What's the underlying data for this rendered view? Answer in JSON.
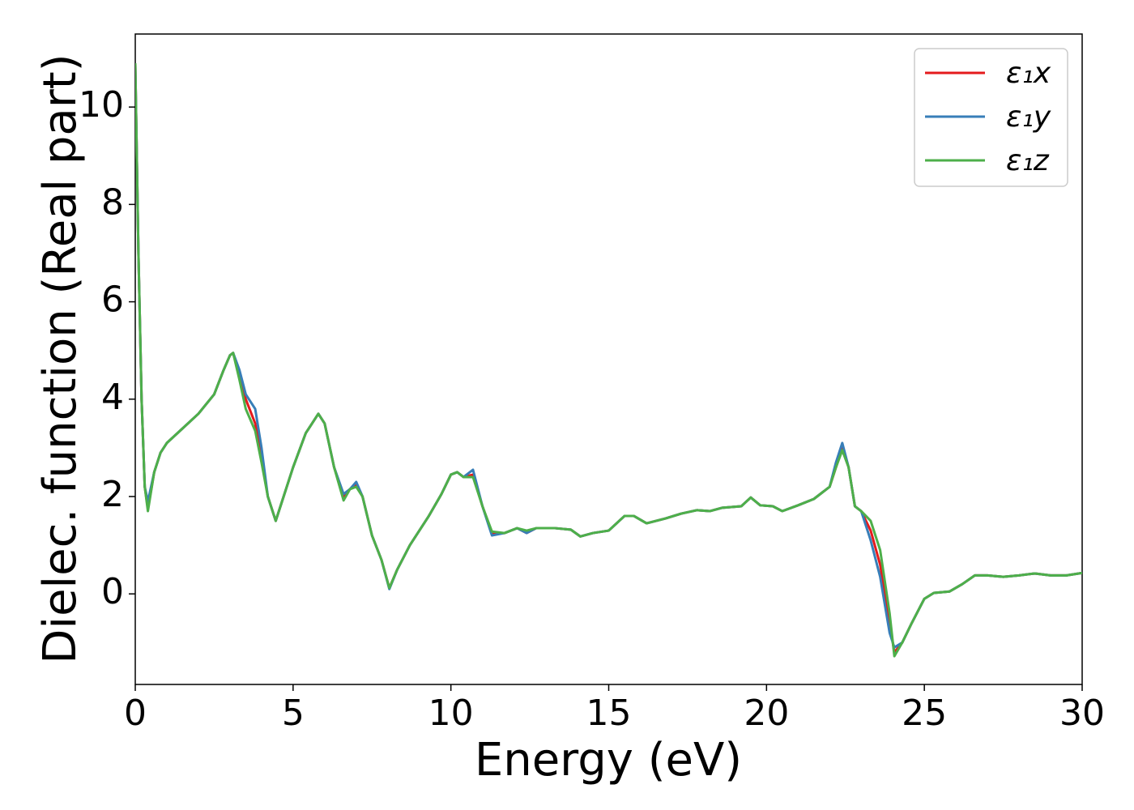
{
  "chart_data": {
    "type": "line",
    "xlabel": "Energy (eV)",
    "ylabel": "Dielec. function (Real part)",
    "xlim": [
      0,
      30
    ],
    "ylim": [
      -1.86,
      11.5
    ],
    "xticks": [
      0,
      5,
      10,
      15,
      20,
      25,
      30
    ],
    "yticks": [
      0,
      2,
      4,
      6,
      8,
      10
    ],
    "legend": "upper right",
    "x": [
      0,
      0.1,
      0.2,
      0.3,
      0.4,
      0.6,
      0.8,
      1.0,
      1.5,
      2.0,
      2.5,
      2.8,
      3.0,
      3.1,
      3.3,
      3.5,
      3.8,
      4.0,
      4.2,
      4.45,
      4.7,
      5.0,
      5.4,
      5.8,
      6.0,
      6.3,
      6.6,
      6.8,
      7.0,
      7.2,
      7.5,
      7.8,
      8.05,
      8.3,
      8.7,
      9.3,
      9.7,
      10.0,
      10.2,
      10.4,
      10.7,
      11.0,
      11.3,
      11.7,
      12.1,
      12.4,
      12.7,
      13.3,
      13.8,
      14.1,
      14.5,
      15.0,
      15.5,
      15.8,
      16.2,
      16.8,
      17.3,
      17.8,
      18.2,
      18.6,
      19.2,
      19.5,
      19.8,
      20.2,
      20.5,
      21.0,
      21.5,
      22.0,
      22.2,
      22.4,
      22.6,
      22.8,
      23.0,
      23.3,
      23.6,
      23.9,
      24.05,
      24.3,
      24.6,
      25.0,
      25.3,
      25.8,
      26.2,
      26.6,
      27.0,
      27.5,
      28.0,
      28.5,
      29.0,
      29.5,
      30
    ],
    "series": [
      {
        "name": "ε₁x",
        "color": "#e41a1c",
        "values": [
          10.9,
          7,
          4,
          2.2,
          1.75,
          2.5,
          2.9,
          3.1,
          3.4,
          3.7,
          4.1,
          4.6,
          4.9,
          4.95,
          4.5,
          4.0,
          3.5,
          2.8,
          2.0,
          1.5,
          2.0,
          2.6,
          3.3,
          3.7,
          3.5,
          2.6,
          2.0,
          2.15,
          2.25,
          2.0,
          1.2,
          0.7,
          0.12,
          0.5,
          1.0,
          1.6,
          2.05,
          2.45,
          2.5,
          2.4,
          2.45,
          1.8,
          1.25,
          1.25,
          1.35,
          1.25,
          1.35,
          1.35,
          1.32,
          1.18,
          1.25,
          1.3,
          1.6,
          1.6,
          1.45,
          1.55,
          1.65,
          1.72,
          1.7,
          1.77,
          1.8,
          1.98,
          1.82,
          1.8,
          1.7,
          1.82,
          1.95,
          2.2,
          2.6,
          3.0,
          2.6,
          1.8,
          1.7,
          1.3,
          0.6,
          -0.6,
          -1.2,
          -1.0,
          -0.6,
          -0.1,
          0.02,
          0.05,
          0.2,
          0.38,
          0.38,
          0.35,
          0.38,
          0.42,
          0.38,
          0.38,
          0.43
        ]
      },
      {
        "name": "ε₁y",
        "color": "#377eb8",
        "values": [
          10.9,
          7,
          4,
          2.2,
          1.9,
          2.5,
          2.9,
          3.1,
          3.4,
          3.7,
          4.1,
          4.6,
          4.9,
          4.95,
          4.6,
          4.1,
          3.8,
          3.0,
          2.0,
          1.5,
          2.0,
          2.6,
          3.3,
          3.7,
          3.5,
          2.6,
          2.05,
          2.15,
          2.3,
          2.0,
          1.2,
          0.7,
          0.1,
          0.5,
          1.0,
          1.6,
          2.05,
          2.45,
          2.5,
          2.4,
          2.55,
          1.8,
          1.2,
          1.25,
          1.35,
          1.25,
          1.35,
          1.35,
          1.32,
          1.18,
          1.25,
          1.3,
          1.6,
          1.6,
          1.45,
          1.55,
          1.65,
          1.72,
          1.7,
          1.77,
          1.8,
          1.98,
          1.82,
          1.8,
          1.7,
          1.82,
          1.95,
          2.2,
          2.7,
          3.1,
          2.6,
          1.8,
          1.7,
          1.1,
          0.35,
          -0.8,
          -1.1,
          -1.0,
          -0.6,
          -0.1,
          0.02,
          0.05,
          0.2,
          0.38,
          0.38,
          0.35,
          0.38,
          0.42,
          0.38,
          0.38,
          0.43
        ]
      },
      {
        "name": "ε₁z",
        "color": "#4daf4a",
        "values": [
          10.9,
          7,
          4,
          2.2,
          1.7,
          2.5,
          2.9,
          3.1,
          3.4,
          3.7,
          4.1,
          4.6,
          4.9,
          4.95,
          4.4,
          3.8,
          3.35,
          2.7,
          2.0,
          1.5,
          2.0,
          2.6,
          3.3,
          3.7,
          3.5,
          2.6,
          1.92,
          2.15,
          2.2,
          2.0,
          1.2,
          0.7,
          0.12,
          0.5,
          1.0,
          1.6,
          2.05,
          2.45,
          2.5,
          2.4,
          2.4,
          1.8,
          1.28,
          1.25,
          1.35,
          1.3,
          1.35,
          1.35,
          1.32,
          1.18,
          1.25,
          1.3,
          1.6,
          1.6,
          1.45,
          1.55,
          1.65,
          1.72,
          1.7,
          1.77,
          1.8,
          1.98,
          1.82,
          1.8,
          1.7,
          1.82,
          1.95,
          2.2,
          2.6,
          2.95,
          2.6,
          1.8,
          1.7,
          1.5,
          0.9,
          -0.4,
          -1.28,
          -1.0,
          -0.6,
          -0.1,
          0.02,
          0.05,
          0.2,
          0.38,
          0.38,
          0.35,
          0.38,
          0.42,
          0.38,
          0.38,
          0.43
        ]
      }
    ]
  }
}
